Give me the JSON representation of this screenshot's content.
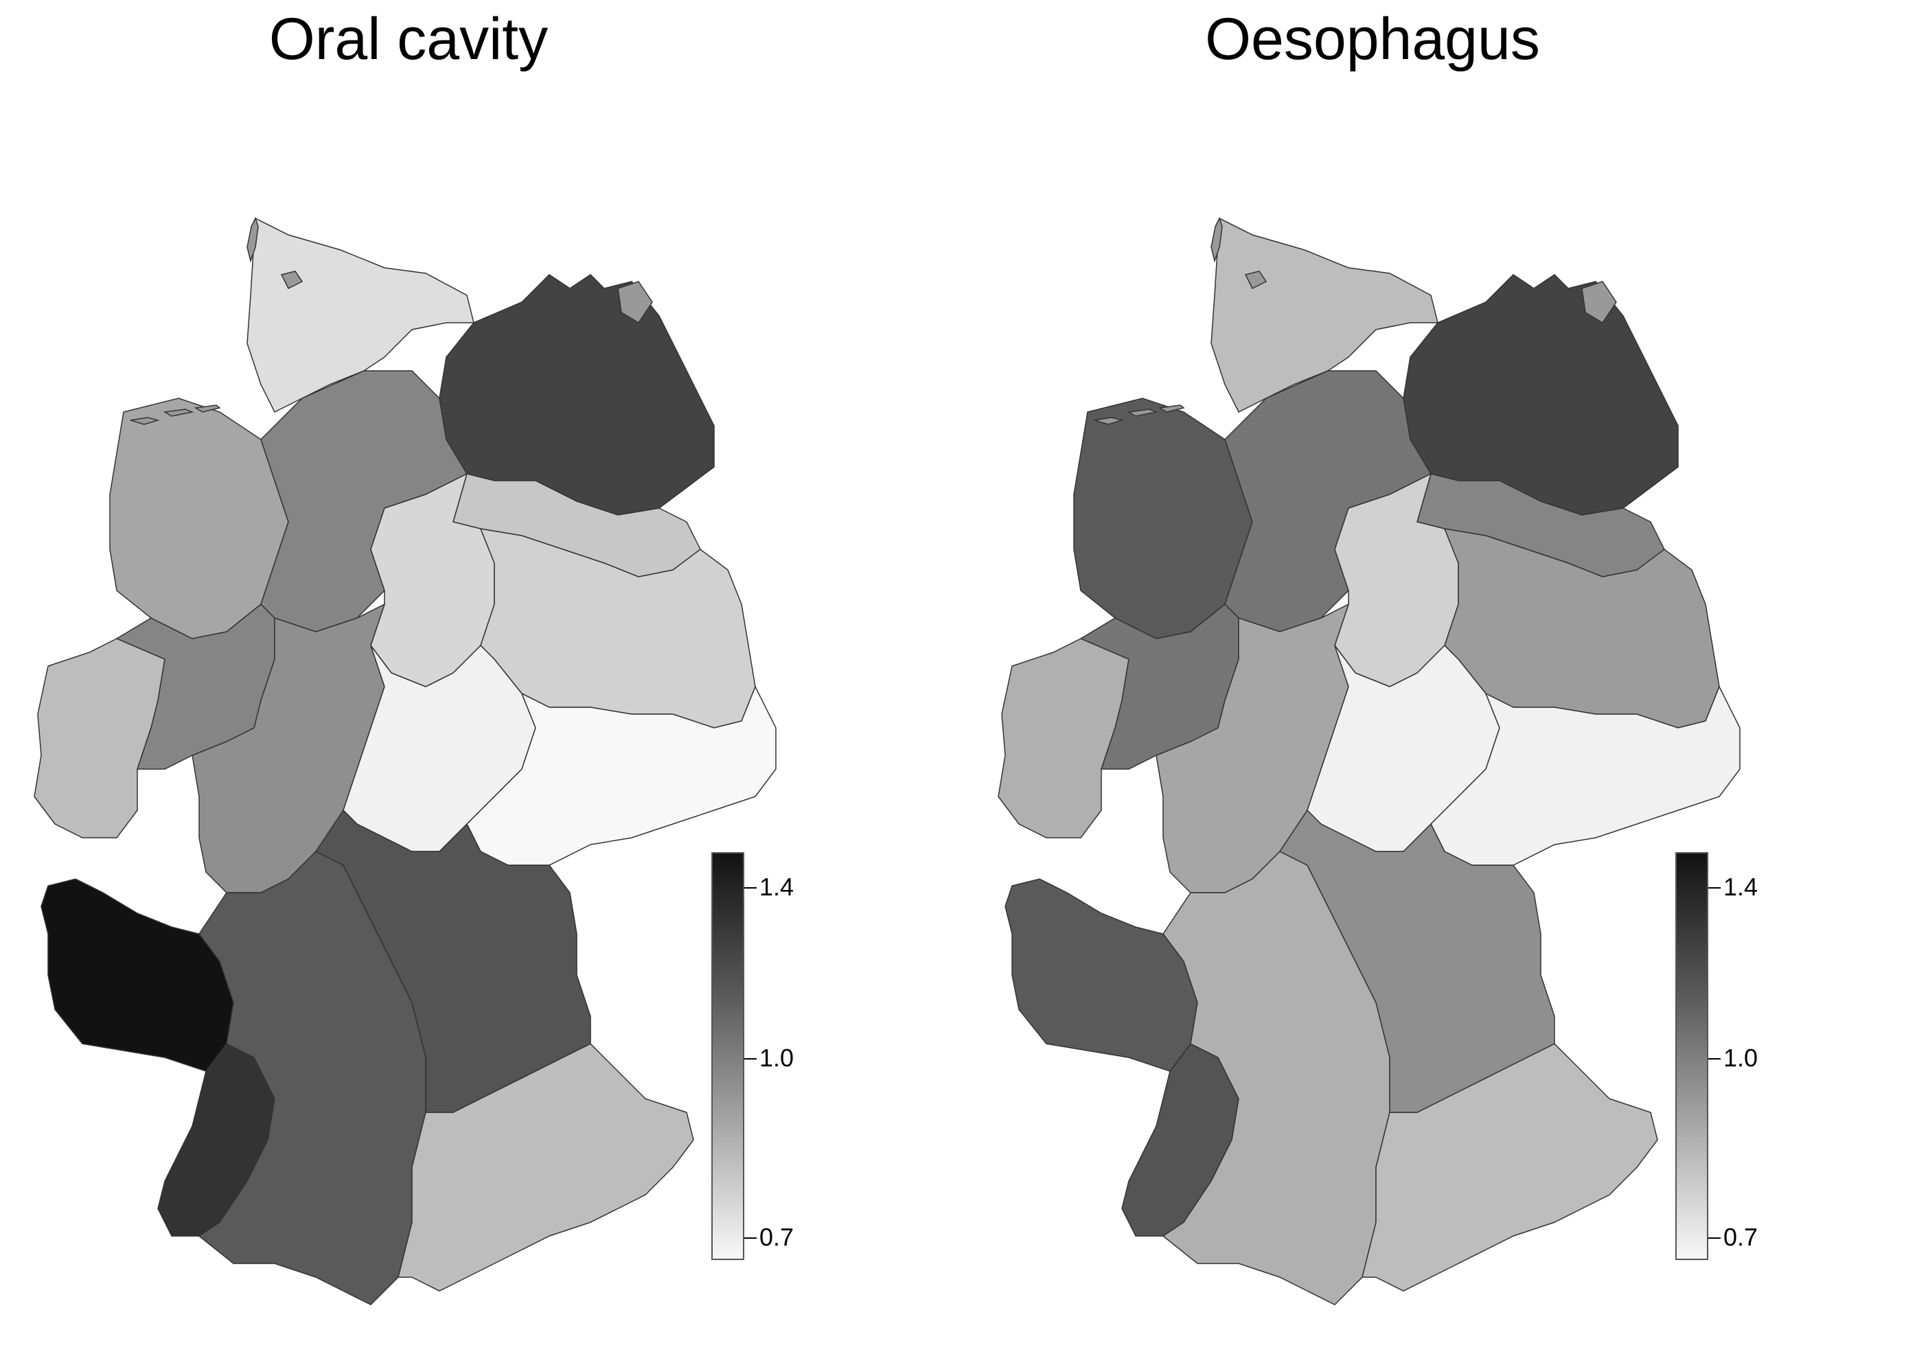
{
  "maps": [
    {
      "title": "Oral cavity",
      "legend": {
        "ticks": [
          "1.4",
          "1.0",
          "0.7"
        ],
        "min": 0.7,
        "max": 1.4
      },
      "regions": [
        {
          "name": "schleswig-holstein",
          "value": 0.78
        },
        {
          "name": "mecklenburg-vorpommern",
          "value": 1.25
        },
        {
          "name": "lower-saxony-northwest",
          "value": 0.95
        },
        {
          "name": "lower-saxony-central",
          "value": 1.05
        },
        {
          "name": "brandenburg-north",
          "value": 0.85
        },
        {
          "name": "saxony-anhalt",
          "value": 0.8
        },
        {
          "name": "brandenburg-east",
          "value": 0.82
        },
        {
          "name": "north-rhine-westphalia-west",
          "value": 0.88
        },
        {
          "name": "ruhr-area",
          "value": 1.05
        },
        {
          "name": "hesse",
          "value": 1.02
        },
        {
          "name": "thuringia",
          "value": 0.72
        },
        {
          "name": "saxony",
          "value": 0.68
        },
        {
          "name": "rhineland-palatinate-saarland",
          "value": 1.4
        },
        {
          "name": "baden-west",
          "value": 1.3
        },
        {
          "name": "baden-wuerttemberg-east",
          "value": 1.18
        },
        {
          "name": "bavaria-north",
          "value": 1.2
        },
        {
          "name": "bavaria-south",
          "value": 0.88
        }
      ]
    },
    {
      "title": "Oesophagus",
      "legend": {
        "ticks": [
          "1.4",
          "1.0",
          "0.7"
        ],
        "min": 0.7,
        "max": 1.4
      },
      "regions": [
        {
          "name": "schleswig-holstein",
          "value": 0.88
        },
        {
          "name": "mecklenburg-vorpommern",
          "value": 1.25
        },
        {
          "name": "lower-saxony-northwest",
          "value": 1.18
        },
        {
          "name": "lower-saxony-central",
          "value": 1.1
        },
        {
          "name": "brandenburg-north",
          "value": 1.05
        },
        {
          "name": "saxony-anhalt",
          "value": 0.82
        },
        {
          "name": "brandenburg-east",
          "value": 0.98
        },
        {
          "name": "north-rhine-westphalia-west",
          "value": 0.92
        },
        {
          "name": "ruhr-area",
          "value": 1.1
        },
        {
          "name": "hesse",
          "value": 0.95
        },
        {
          "name": "thuringia",
          "value": 0.72
        },
        {
          "name": "saxony",
          "value": 0.72
        },
        {
          "name": "rhineland-palatinate-saarland",
          "value": 1.18
        },
        {
          "name": "baden-west",
          "value": 1.2
        },
        {
          "name": "baden-wuerttemberg-east",
          "value": 0.92
        },
        {
          "name": "bavaria-north",
          "value": 1.02
        },
        {
          "name": "bavaria-south",
          "value": 0.88
        }
      ]
    }
  ]
}
